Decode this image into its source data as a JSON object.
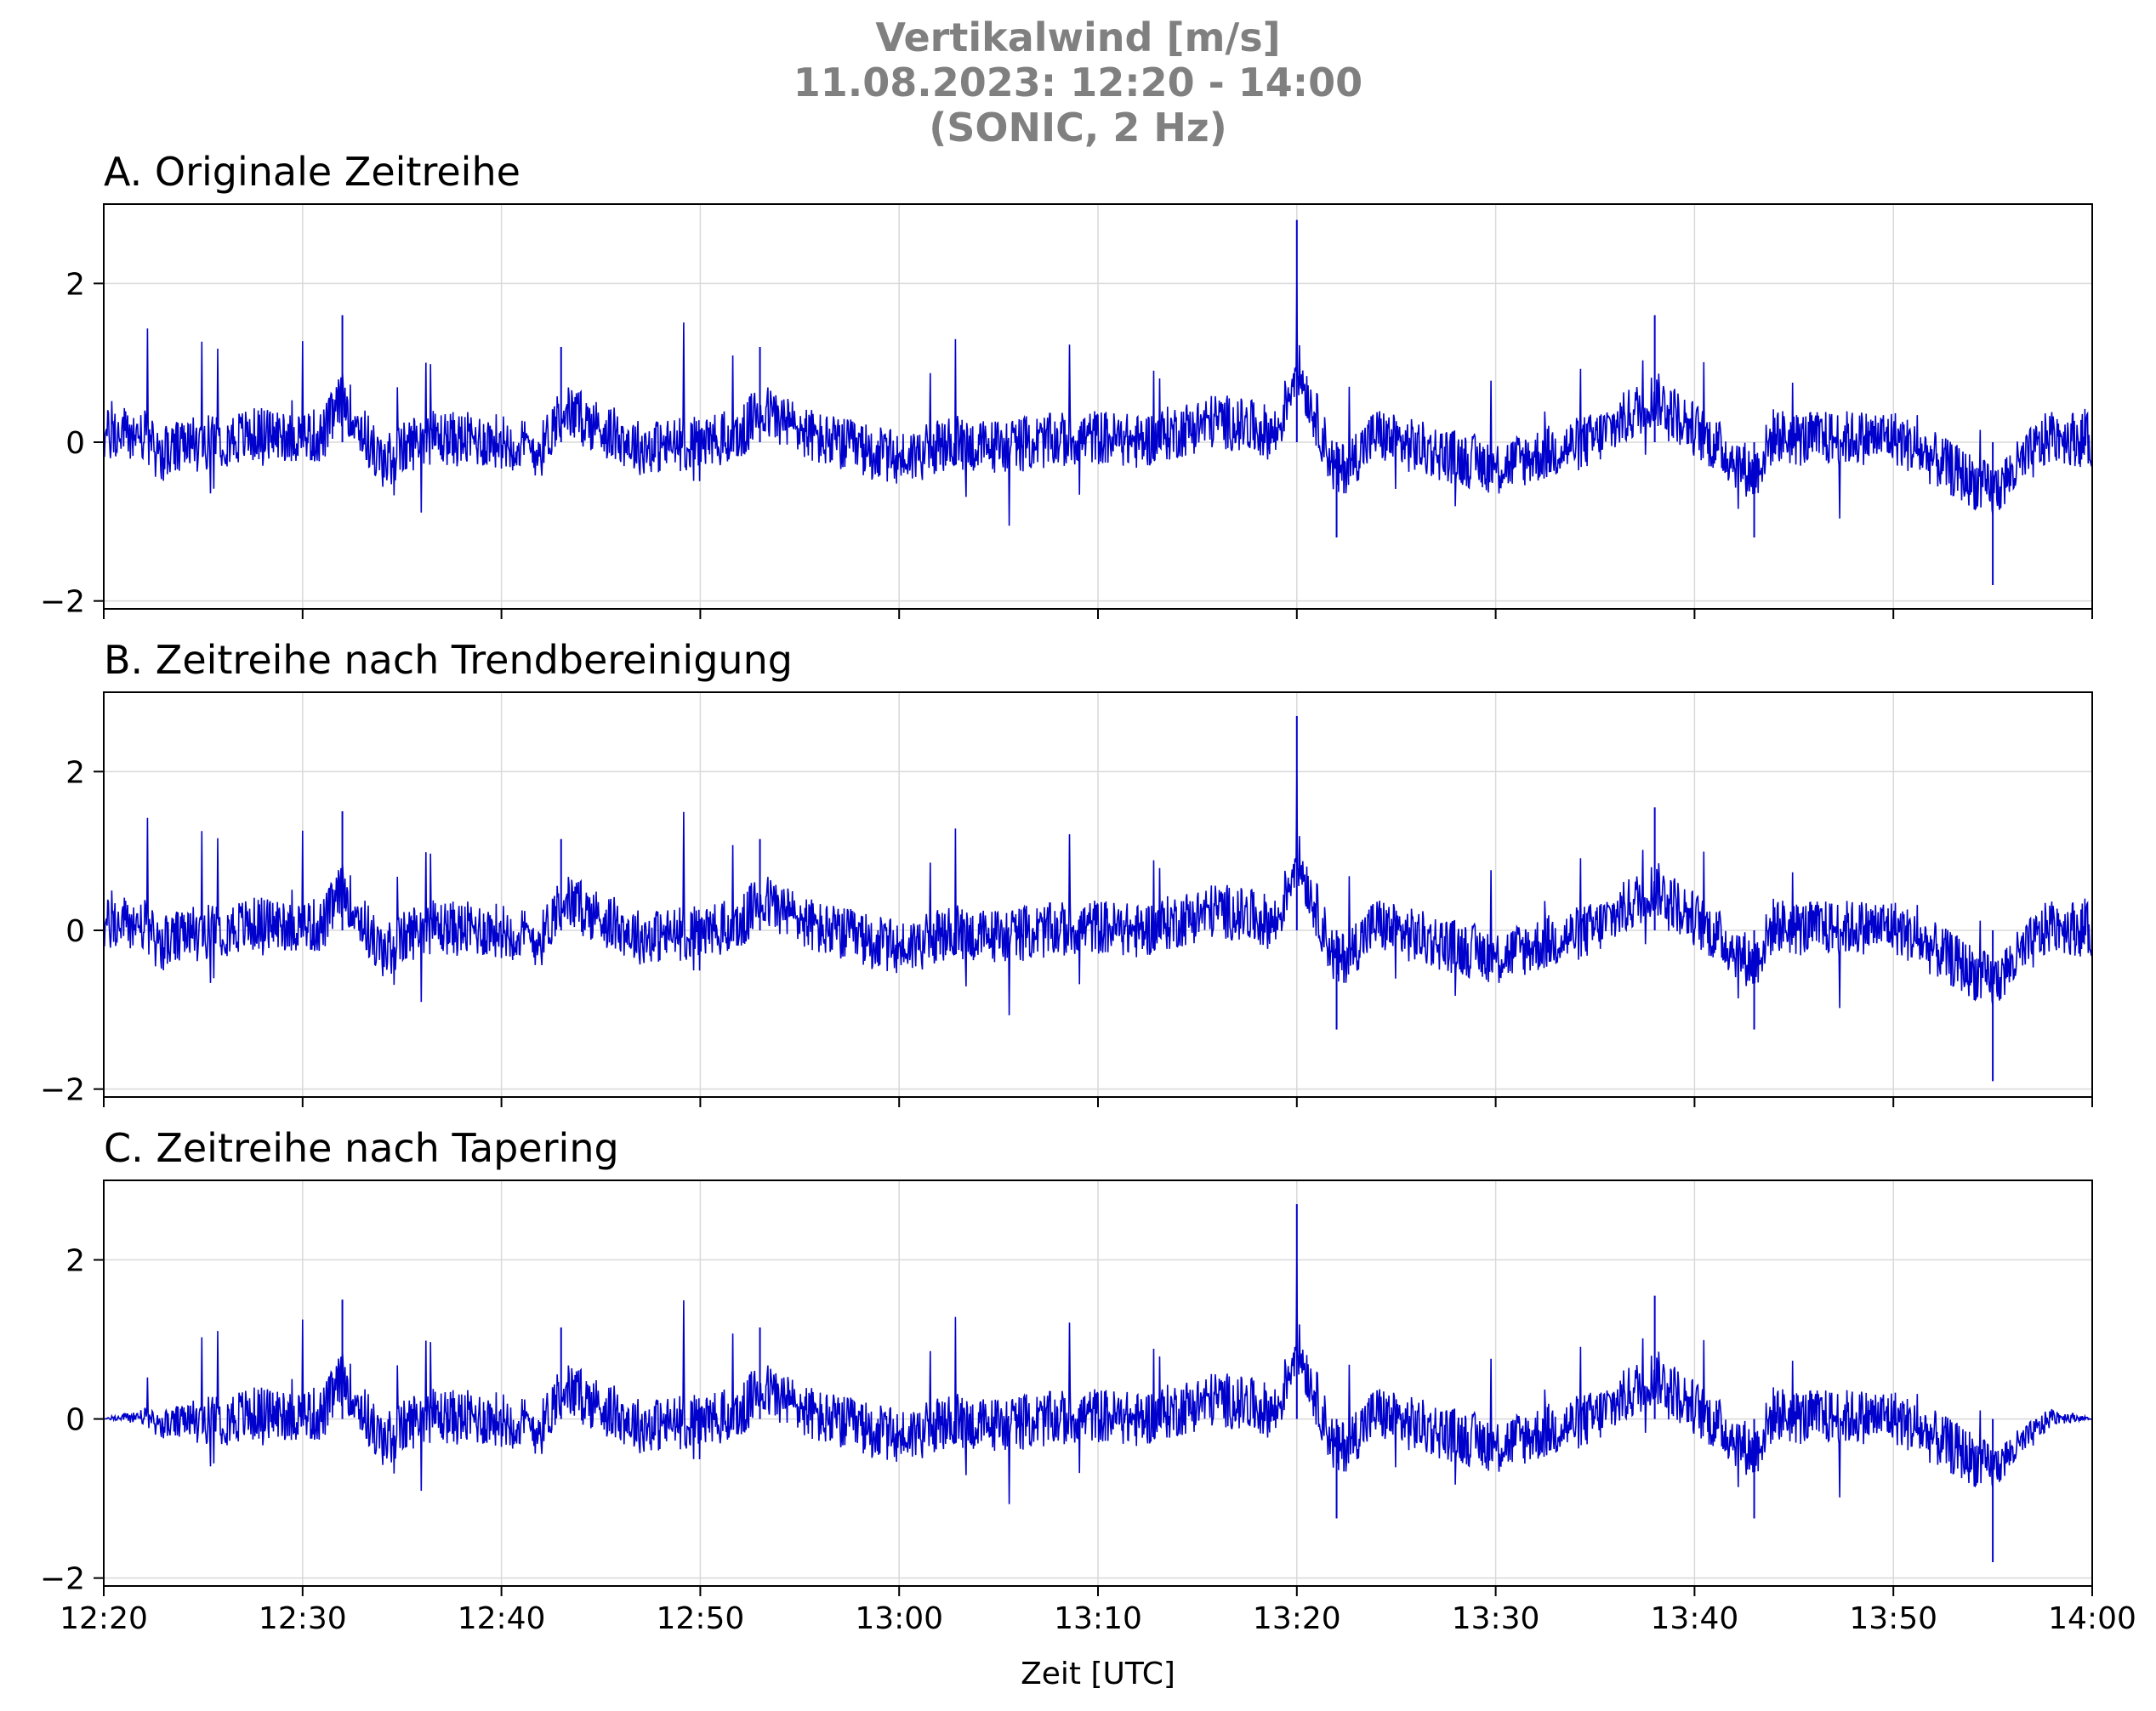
{
  "figure": {
    "title_lines": [
      "Vertikalwind [m/s]",
      "11.08.2023:  12:20 -  14:00",
      "(SONIC, 2 Hz)"
    ],
    "xlabel": "Zeit [UTC]",
    "line_color": "#0000cc",
    "title_color": "#808080",
    "grid_color": "#d9d9d9"
  },
  "chart_data": [
    {
      "type": "line",
      "title": "A. Originale Zeitreihe",
      "xlim": [
        "12:20",
        "14:00"
      ],
      "ylim": [
        -2.1,
        3.0
      ],
      "yticks": [
        -2,
        0,
        2
      ],
      "xticks": [
        "12:20",
        "12:30",
        "12:40",
        "12:50",
        "13:00",
        "13:10",
        "13:20",
        "13:30",
        "13:40",
        "13:50",
        "14:00"
      ],
      "grid": true,
      "series": [
        {
          "values_minutes": [
            0,
            1,
            2,
            2.5,
            3,
            5,
            8,
            11,
            12,
            14,
            16,
            18,
            20,
            22,
            23,
            27,
            30,
            32,
            33,
            36,
            40,
            43,
            44,
            47,
            50,
            52,
            56,
            59,
            60,
            62,
            64,
            65,
            70,
            75,
            78,
            83,
            84,
            85,
            90,
            95,
            98,
            100
          ],
          "y": [
            0.2,
            0.3,
            0.25,
            -0.3,
            -0.4,
            0.0,
            0.3,
            0.2,
            1.6,
            -0.8,
            0.2,
            0.1,
            0.05,
            -0.3,
            1.2,
            -0.2,
            0.0,
            0.2,
            1.2,
            0.1,
            -0.6,
            0.0,
            -0.2,
            0.0,
            0.2,
            0.0,
            0.8,
            0.3,
            2.8,
            -1.2,
            0.3,
            0.0,
            -0.9,
            0.1,
            1.6,
            -1.2,
            0.3,
            0.1,
            0.2,
            -1.8,
            0.3,
            0.0
          ]
        }
      ]
    },
    {
      "type": "line",
      "title": "B. Zeitreihe nach Trendbereinigung",
      "xlim": [
        "12:20",
        "14:00"
      ],
      "ylim": [
        -2.1,
        3.0
      ],
      "yticks": [
        -2,
        0,
        2
      ],
      "xticks": [
        "12:20",
        "12:30",
        "12:40",
        "12:50",
        "13:00",
        "13:10",
        "13:20",
        "13:30",
        "13:40",
        "13:50",
        "14:00"
      ],
      "grid": true,
      "series": [
        {
          "values_minutes": [
            0,
            1,
            2,
            2.5,
            3,
            5,
            8,
            11,
            12,
            14,
            16,
            18,
            20,
            22,
            23,
            27,
            30,
            32,
            33,
            36,
            40,
            43,
            44,
            47,
            50,
            52,
            56,
            59,
            60,
            62,
            64,
            65,
            70,
            75,
            78,
            83,
            84,
            85,
            90,
            95,
            98,
            100
          ],
          "y": [
            0.15,
            0.25,
            0.2,
            -0.35,
            -0.45,
            -0.05,
            0.25,
            0.15,
            1.5,
            -0.85,
            0.15,
            0.05,
            0.0,
            -0.35,
            1.15,
            -0.25,
            -0.05,
            0.15,
            1.15,
            0.05,
            -0.65,
            -0.05,
            -0.25,
            -0.05,
            0.15,
            -0.05,
            0.75,
            0.25,
            2.7,
            -1.25,
            0.25,
            -0.05,
            -0.95,
            0.05,
            1.55,
            -1.25,
            0.25,
            0.05,
            0.15,
            -1.9,
            0.25,
            -0.05
          ]
        }
      ]
    },
    {
      "type": "line",
      "title": "C. Zeitreihe nach Tapering",
      "xlim": [
        "12:20",
        "14:00"
      ],
      "ylim": [
        -2.1,
        3.0
      ],
      "yticks": [
        -2,
        0,
        2
      ],
      "xticks": [
        "12:20",
        "12:30",
        "12:40",
        "12:50",
        "13:00",
        "13:10",
        "13:20",
        "13:30",
        "13:40",
        "13:50",
        "14:00"
      ],
      "grid": true,
      "series": [
        {
          "values_minutes": [
            0,
            1,
            2,
            2.5,
            3,
            5,
            8,
            11,
            12,
            14,
            16,
            18,
            20,
            22,
            23,
            27,
            30,
            32,
            33,
            36,
            40,
            43,
            44,
            47,
            50,
            52,
            56,
            59,
            60,
            62,
            64,
            65,
            70,
            75,
            78,
            83,
            84,
            85,
            90,
            95,
            98,
            100
          ],
          "y": [
            0.0,
            0.05,
            0.1,
            -0.15,
            -0.2,
            -0.05,
            0.2,
            0.15,
            1.5,
            -0.85,
            0.15,
            0.05,
            0.0,
            -0.35,
            1.15,
            -0.25,
            -0.05,
            0.15,
            1.15,
            0.05,
            -0.65,
            -0.05,
            -0.25,
            -0.05,
            0.15,
            -0.05,
            0.75,
            0.25,
            2.7,
            -1.25,
            0.25,
            -0.05,
            -0.95,
            0.05,
            1.55,
            -1.25,
            0.25,
            0.05,
            0.1,
            -1.8,
            0.1,
            0.0
          ]
        }
      ]
    }
  ]
}
